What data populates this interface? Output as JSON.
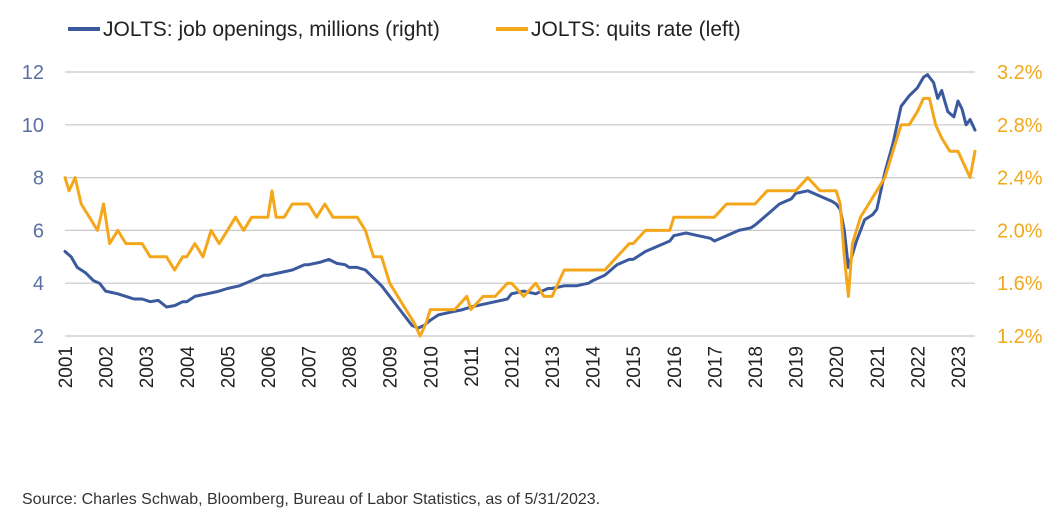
{
  "colors": {
    "openings": "#3b5a9d",
    "quits": "#f5a71c",
    "grid": "#c8c8c8",
    "left_axis_text": "#5a6fa6",
    "right_axis_text": "#f0a81c"
  },
  "source": "Source: Charles Schwab, Bloomberg, Bureau of Labor Statistics, as of 5/31/2023.",
  "chart_data": {
    "type": "line",
    "title": "",
    "grid": "horizontal",
    "legend": "top-left",
    "legend_entries": [
      "JOLTS: job openings, millions (right)",
      "JOLTS: quits rate (left)"
    ],
    "x_ticks": [
      "2001",
      "2002",
      "2003",
      "2004",
      "2005",
      "2006",
      "2007",
      "2008",
      "2009",
      "2010",
      "2011",
      "2012",
      "2013",
      "2014",
      "2015",
      "2016",
      "2017",
      "2018",
      "2019",
      "2020",
      "2021",
      "2022",
      "2023"
    ],
    "xlim": [
      2001.0,
      2023.42
    ],
    "y_left": {
      "ticks": [
        "12",
        "10",
        "8",
        "6",
        "4",
        "2"
      ],
      "ylim": [
        2,
        12
      ]
    },
    "y_right": {
      "ticks": [
        "3.2%",
        "2.8%",
        "2.4%",
        "2.0%",
        "1.6%",
        "1.2%"
      ],
      "ylim": [
        1.2,
        3.2
      ],
      "unit": "%"
    },
    "series": [
      {
        "name": "JOLTS: job openings, millions (right)",
        "axis": "left-scale",
        "points": [
          [
            2001.0,
            5.2
          ],
          [
            2001.15,
            5.0
          ],
          [
            2001.3,
            4.6
          ],
          [
            2001.5,
            4.4
          ],
          [
            2001.7,
            4.1
          ],
          [
            2001.85,
            4.0
          ],
          [
            2002.0,
            3.7
          ],
          [
            2002.3,
            3.6
          ],
          [
            2002.5,
            3.5
          ],
          [
            2002.7,
            3.4
          ],
          [
            2002.9,
            3.4
          ],
          [
            2003.1,
            3.3
          ],
          [
            2003.3,
            3.35
          ],
          [
            2003.5,
            3.1
          ],
          [
            2003.7,
            3.15
          ],
          [
            2003.9,
            3.3
          ],
          [
            2004.0,
            3.3
          ],
          [
            2004.2,
            3.5
          ],
          [
            2004.5,
            3.6
          ],
          [
            2004.8,
            3.7
          ],
          [
            2005.0,
            3.8
          ],
          [
            2005.3,
            3.9
          ],
          [
            2005.6,
            4.1
          ],
          [
            2005.9,
            4.3
          ],
          [
            2006.0,
            4.3
          ],
          [
            2006.3,
            4.4
          ],
          [
            2006.6,
            4.5
          ],
          [
            2006.9,
            4.7
          ],
          [
            2007.0,
            4.7
          ],
          [
            2007.3,
            4.8
          ],
          [
            2007.5,
            4.9
          ],
          [
            2007.7,
            4.75
          ],
          [
            2007.9,
            4.7
          ],
          [
            2008.0,
            4.6
          ],
          [
            2008.2,
            4.6
          ],
          [
            2008.4,
            4.5
          ],
          [
            2008.6,
            4.2
          ],
          [
            2008.8,
            3.9
          ],
          [
            2009.0,
            3.5
          ],
          [
            2009.2,
            3.1
          ],
          [
            2009.4,
            2.7
          ],
          [
            2009.55,
            2.4
          ],
          [
            2009.7,
            2.3
          ],
          [
            2009.85,
            2.4
          ],
          [
            2010.0,
            2.6
          ],
          [
            2010.2,
            2.8
          ],
          [
            2010.5,
            2.9
          ],
          [
            2010.8,
            3.0
          ],
          [
            2011.0,
            3.1
          ],
          [
            2011.3,
            3.2
          ],
          [
            2011.6,
            3.3
          ],
          [
            2011.9,
            3.4
          ],
          [
            2012.0,
            3.6
          ],
          [
            2012.3,
            3.7
          ],
          [
            2012.6,
            3.6
          ],
          [
            2012.9,
            3.8
          ],
          [
            2013.0,
            3.8
          ],
          [
            2013.3,
            3.9
          ],
          [
            2013.6,
            3.9
          ],
          [
            2013.9,
            4.0
          ],
          [
            2014.0,
            4.1
          ],
          [
            2014.3,
            4.3
          ],
          [
            2014.6,
            4.7
          ],
          [
            2014.9,
            4.9
          ],
          [
            2015.0,
            4.9
          ],
          [
            2015.3,
            5.2
          ],
          [
            2015.6,
            5.4
          ],
          [
            2015.9,
            5.6
          ],
          [
            2016.0,
            5.8
          ],
          [
            2016.3,
            5.9
          ],
          [
            2016.6,
            5.8
          ],
          [
            2016.9,
            5.7
          ],
          [
            2017.0,
            5.6
          ],
          [
            2017.3,
            5.8
          ],
          [
            2017.6,
            6.0
          ],
          [
            2017.9,
            6.1
          ],
          [
            2018.0,
            6.2
          ],
          [
            2018.3,
            6.6
          ],
          [
            2018.6,
            7.0
          ],
          [
            2018.9,
            7.2
          ],
          [
            2019.0,
            7.4
          ],
          [
            2019.3,
            7.5
          ],
          [
            2019.6,
            7.3
          ],
          [
            2019.9,
            7.1
          ],
          [
            2020.0,
            7.0
          ],
          [
            2020.1,
            6.8
          ],
          [
            2020.2,
            6.0
          ],
          [
            2020.3,
            4.6
          ],
          [
            2020.5,
            5.6
          ],
          [
            2020.7,
            6.4
          ],
          [
            2020.9,
            6.6
          ],
          [
            2021.0,
            6.8
          ],
          [
            2021.2,
            8.2
          ],
          [
            2021.4,
            9.3
          ],
          [
            2021.6,
            10.7
          ],
          [
            2021.8,
            11.1
          ],
          [
            2022.0,
            11.4
          ],
          [
            2022.15,
            11.8
          ],
          [
            2022.25,
            11.9
          ],
          [
            2022.4,
            11.6
          ],
          [
            2022.5,
            11.0
          ],
          [
            2022.6,
            11.3
          ],
          [
            2022.75,
            10.5
          ],
          [
            2022.9,
            10.3
          ],
          [
            2023.0,
            10.9
          ],
          [
            2023.1,
            10.6
          ],
          [
            2023.2,
            10.0
          ],
          [
            2023.3,
            10.2
          ],
          [
            2023.42,
            9.8
          ]
        ]
      },
      {
        "name": "JOLTS: quits rate (left)",
        "axis": "right",
        "points": [
          [
            2001.0,
            2.4
          ],
          [
            2001.1,
            2.3
          ],
          [
            2001.25,
            2.4
          ],
          [
            2001.4,
            2.2
          ],
          [
            2001.6,
            2.1
          ],
          [
            2001.8,
            2.0
          ],
          [
            2001.95,
            2.2
          ],
          [
            2002.1,
            1.9
          ],
          [
            2002.3,
            2.0
          ],
          [
            2002.5,
            1.9
          ],
          [
            2002.7,
            1.9
          ],
          [
            2002.9,
            1.9
          ],
          [
            2003.1,
            1.8
          ],
          [
            2003.3,
            1.8
          ],
          [
            2003.5,
            1.8
          ],
          [
            2003.7,
            1.7
          ],
          [
            2003.9,
            1.8
          ],
          [
            2004.0,
            1.8
          ],
          [
            2004.2,
            1.9
          ],
          [
            2004.4,
            1.8
          ],
          [
            2004.6,
            2.0
          ],
          [
            2004.8,
            1.9
          ],
          [
            2005.0,
            2.0
          ],
          [
            2005.2,
            2.1
          ],
          [
            2005.4,
            2.0
          ],
          [
            2005.6,
            2.1
          ],
          [
            2005.8,
            2.1
          ],
          [
            2006.0,
            2.1
          ],
          [
            2006.1,
            2.3
          ],
          [
            2006.2,
            2.1
          ],
          [
            2006.4,
            2.1
          ],
          [
            2006.6,
            2.2
          ],
          [
            2006.8,
            2.2
          ],
          [
            2007.0,
            2.2
          ],
          [
            2007.2,
            2.1
          ],
          [
            2007.4,
            2.2
          ],
          [
            2007.6,
            2.1
          ],
          [
            2007.8,
            2.1
          ],
          [
            2008.0,
            2.1
          ],
          [
            2008.2,
            2.1
          ],
          [
            2008.4,
            2.0
          ],
          [
            2008.6,
            1.8
          ],
          [
            2008.8,
            1.8
          ],
          [
            2009.0,
            1.6
          ],
          [
            2009.2,
            1.5
          ],
          [
            2009.4,
            1.4
          ],
          [
            2009.6,
            1.3
          ],
          [
            2009.75,
            1.2
          ],
          [
            2009.9,
            1.3
          ],
          [
            2010.0,
            1.4
          ],
          [
            2010.3,
            1.4
          ],
          [
            2010.6,
            1.4
          ],
          [
            2010.9,
            1.5
          ],
          [
            2011.0,
            1.4
          ],
          [
            2011.3,
            1.5
          ],
          [
            2011.6,
            1.5
          ],
          [
            2011.9,
            1.6
          ],
          [
            2012.0,
            1.6
          ],
          [
            2012.3,
            1.5
          ],
          [
            2012.6,
            1.6
          ],
          [
            2012.8,
            1.5
          ],
          [
            2013.0,
            1.5
          ],
          [
            2013.3,
            1.7
          ],
          [
            2013.6,
            1.7
          ],
          [
            2013.9,
            1.7
          ],
          [
            2014.0,
            1.7
          ],
          [
            2014.3,
            1.7
          ],
          [
            2014.6,
            1.8
          ],
          [
            2014.9,
            1.9
          ],
          [
            2015.0,
            1.9
          ],
          [
            2015.3,
            2.0
          ],
          [
            2015.6,
            2.0
          ],
          [
            2015.9,
            2.0
          ],
          [
            2016.0,
            2.1
          ],
          [
            2016.3,
            2.1
          ],
          [
            2016.6,
            2.1
          ],
          [
            2016.9,
            2.1
          ],
          [
            2017.0,
            2.1
          ],
          [
            2017.3,
            2.2
          ],
          [
            2017.6,
            2.2
          ],
          [
            2017.9,
            2.2
          ],
          [
            2018.0,
            2.2
          ],
          [
            2018.3,
            2.3
          ],
          [
            2018.6,
            2.3
          ],
          [
            2018.9,
            2.3
          ],
          [
            2019.0,
            2.3
          ],
          [
            2019.3,
            2.4
          ],
          [
            2019.6,
            2.3
          ],
          [
            2019.9,
            2.3
          ],
          [
            2020.0,
            2.3
          ],
          [
            2020.1,
            2.2
          ],
          [
            2020.2,
            1.8
          ],
          [
            2020.3,
            1.5
          ],
          [
            2020.4,
            1.9
          ],
          [
            2020.6,
            2.1
          ],
          [
            2020.8,
            2.2
          ],
          [
            2021.0,
            2.3
          ],
          [
            2021.2,
            2.4
          ],
          [
            2021.4,
            2.6
          ],
          [
            2021.6,
            2.8
          ],
          [
            2021.8,
            2.8
          ],
          [
            2022.0,
            2.9
          ],
          [
            2022.15,
            3.0
          ],
          [
            2022.3,
            3.0
          ],
          [
            2022.45,
            2.8
          ],
          [
            2022.6,
            2.7
          ],
          [
            2022.8,
            2.6
          ],
          [
            2023.0,
            2.6
          ],
          [
            2023.15,
            2.5
          ],
          [
            2023.3,
            2.4
          ],
          [
            2023.42,
            2.6
          ]
        ]
      }
    ]
  }
}
